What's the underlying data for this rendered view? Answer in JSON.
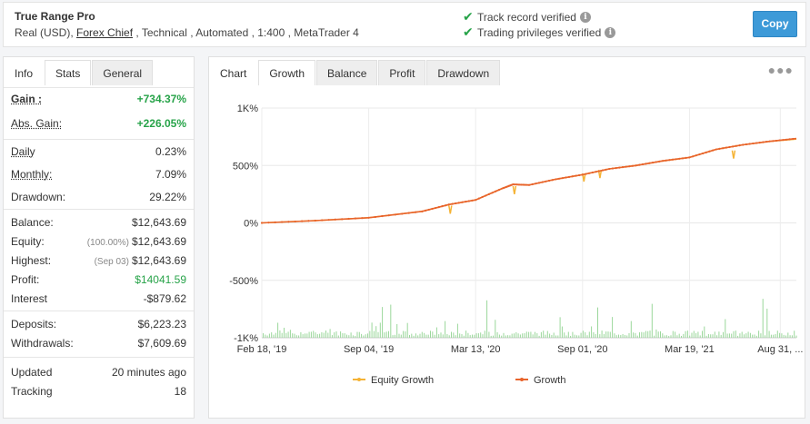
{
  "header": {
    "title": "True Range Pro",
    "subtitle_prefix": "Real (USD), ",
    "broker": "Forex Chief",
    "subtitle_suffix": " , Technical , Automated , 1:400 , MetaTrader 4",
    "verified": [
      "Track record verified",
      "Trading privileges verified"
    ],
    "copy_label": "Copy"
  },
  "left_tabs": [
    "Info",
    "Stats",
    "General"
  ],
  "stats": {
    "gain": {
      "label": "Gain :",
      "value": "+734.37%"
    },
    "abs_gain": {
      "label": "Abs. Gain:",
      "value": "+226.05%"
    },
    "daily": {
      "label": "Daily",
      "value": "0.23%"
    },
    "monthly": {
      "label": "Monthly:",
      "value": "7.09%"
    },
    "drawdown": {
      "label": "Drawdown:",
      "value": "29.22%"
    },
    "balance": {
      "label": "Balance:",
      "value": "$12,643.69"
    },
    "equity": {
      "label": "Equity:",
      "note": "(100.00%)",
      "value": "$12,643.69"
    },
    "highest": {
      "label": "Highest:",
      "note": "(Sep 03)",
      "value": "$12,643.69"
    },
    "profit": {
      "label": "Profit:",
      "value": "$14041.59"
    },
    "interest": {
      "label": "Interest",
      "value": "-$879.62"
    },
    "deposits": {
      "label": "Deposits:",
      "value": "$6,223.23"
    },
    "withdrawals": {
      "label": "Withdrawals:",
      "value": "$7,609.69"
    },
    "updated": {
      "label": "Updated",
      "value": "20 minutes ago"
    },
    "tracking": {
      "label": "Tracking",
      "value": "18"
    }
  },
  "chart_tabs": [
    "Chart",
    "Growth",
    "Balance",
    "Profit",
    "Drawdown"
  ],
  "colors": {
    "growth": "#e8642c",
    "equity": "#f5b335",
    "bars": "#9bd79b",
    "green": "#27a349",
    "accent": "#3d9ad8"
  },
  "chart_data": {
    "type": "line",
    "y_tick_labels": [
      "1K%",
      "500%",
      "0%",
      "-500%",
      "-1K%"
    ],
    "y_ticks": [
      1000,
      500,
      0,
      -500,
      -1000
    ],
    "ylim": [
      -1000,
      1000
    ],
    "x_tick_labels": [
      "Feb 18, '19",
      "Sep 04, '19",
      "Mar 13, '20",
      "Sep 01, '20",
      "Mar 19, '21",
      "Aug 31, ..."
    ],
    "x_tick_positions": [
      0,
      0.2,
      0.4,
      0.6,
      0.8,
      0.97
    ],
    "grid": true,
    "legend_position": "bottom",
    "series": [
      {
        "name": "Equity Growth",
        "style": "line",
        "x": [
          0,
          0.1,
          0.2,
          0.3,
          0.35,
          0.4,
          0.45,
          0.47,
          0.5,
          0.55,
          0.6,
          0.65,
          0.7,
          0.75,
          0.8,
          0.85,
          0.9,
          0.95,
          1.0
        ],
        "values": [
          0,
          20,
          45,
          100,
          160,
          200,
          300,
          335,
          330,
          380,
          420,
          470,
          500,
          540,
          570,
          640,
          680,
          710,
          730
        ]
      },
      {
        "name": "Growth",
        "style": "line-markers",
        "x": [
          0,
          0.1,
          0.2,
          0.3,
          0.35,
          0.4,
          0.45,
          0.47,
          0.5,
          0.55,
          0.6,
          0.65,
          0.7,
          0.75,
          0.8,
          0.85,
          0.9,
          0.95,
          1.0
        ],
        "values": [
          0,
          20,
          45,
          100,
          160,
          200,
          300,
          335,
          330,
          380,
          420,
          470,
          500,
          540,
          570,
          640,
          680,
          710,
          734
        ]
      }
    ]
  }
}
